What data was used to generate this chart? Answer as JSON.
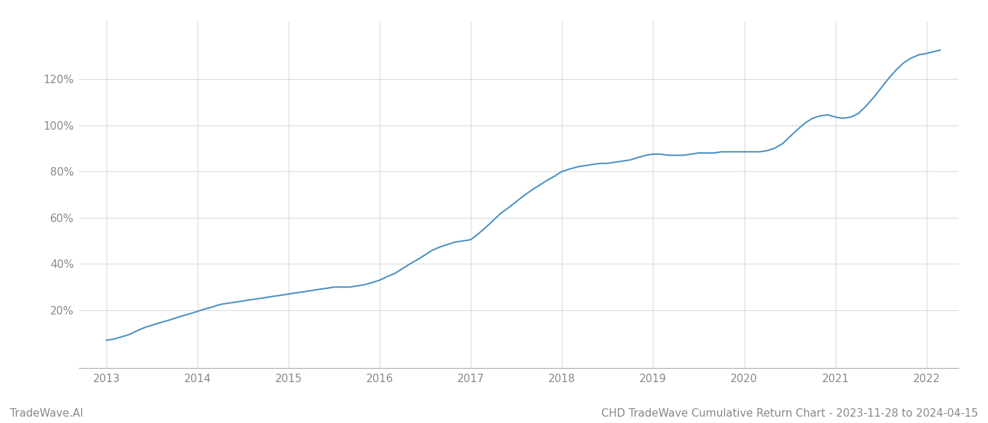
{
  "title": "CHD TradeWave Cumulative Return Chart - 2023-11-28 to 2024-04-15",
  "watermark": "TradeWave.AI",
  "line_color": "#4a90c4",
  "background_color": "#ffffff",
  "grid_color": "#d0d0d0",
  "x_years": [
    2013,
    2014,
    2015,
    2016,
    2017,
    2018,
    2019,
    2020,
    2021,
    2022
  ],
  "data_x": [
    2013.0,
    2013.08,
    2013.17,
    2013.25,
    2013.33,
    2013.42,
    2013.5,
    2013.58,
    2013.67,
    2013.75,
    2013.83,
    2013.92,
    2014.0,
    2014.08,
    2014.17,
    2014.25,
    2014.33,
    2014.42,
    2014.5,
    2014.58,
    2014.67,
    2014.75,
    2014.83,
    2014.92,
    2015.0,
    2015.08,
    2015.17,
    2015.25,
    2015.33,
    2015.42,
    2015.5,
    2015.58,
    2015.67,
    2015.75,
    2015.83,
    2015.92,
    2016.0,
    2016.08,
    2016.17,
    2016.25,
    2016.33,
    2016.42,
    2016.5,
    2016.58,
    2016.67,
    2016.75,
    2016.83,
    2016.92,
    2017.0,
    2017.08,
    2017.17,
    2017.25,
    2017.33,
    2017.42,
    2017.5,
    2017.58,
    2017.67,
    2017.75,
    2017.83,
    2017.92,
    2018.0,
    2018.08,
    2018.17,
    2018.25,
    2018.33,
    2018.42,
    2018.5,
    2018.58,
    2018.67,
    2018.75,
    2018.83,
    2018.92,
    2019.0,
    2019.08,
    2019.17,
    2019.25,
    2019.33,
    2019.42,
    2019.5,
    2019.58,
    2019.67,
    2019.75,
    2019.83,
    2019.92,
    2020.0,
    2020.08,
    2020.17,
    2020.25,
    2020.33,
    2020.42,
    2020.5,
    2020.58,
    2020.67,
    2020.75,
    2020.83,
    2020.92,
    2021.0,
    2021.08,
    2021.17,
    2021.25,
    2021.33,
    2021.42,
    2021.5,
    2021.58,
    2021.67,
    2021.75,
    2021.83,
    2021.92,
    2022.0,
    2022.05,
    2022.1,
    2022.15
  ],
  "data_y": [
    7.0,
    7.5,
    8.5,
    9.5,
    11.0,
    12.5,
    13.5,
    14.5,
    15.5,
    16.5,
    17.5,
    18.5,
    19.5,
    20.5,
    21.5,
    22.5,
    23.0,
    23.5,
    24.0,
    24.5,
    25.0,
    25.5,
    26.0,
    26.5,
    27.0,
    27.5,
    28.0,
    28.5,
    29.0,
    29.5,
    30.0,
    30.0,
    30.0,
    30.5,
    31.0,
    32.0,
    33.0,
    34.5,
    36.0,
    38.0,
    40.0,
    42.0,
    44.0,
    46.0,
    47.5,
    48.5,
    49.5,
    50.0,
    50.5,
    53.0,
    56.0,
    59.0,
    62.0,
    64.5,
    67.0,
    69.5,
    72.0,
    74.0,
    76.0,
    78.0,
    80.0,
    81.0,
    82.0,
    82.5,
    83.0,
    83.5,
    83.5,
    84.0,
    84.5,
    85.0,
    86.0,
    87.0,
    87.5,
    87.5,
    87.0,
    87.0,
    87.0,
    87.5,
    88.0,
    88.0,
    88.0,
    88.5,
    88.5,
    88.5,
    88.5,
    88.5,
    88.5,
    89.0,
    90.0,
    92.0,
    95.0,
    98.0,
    101.0,
    103.0,
    104.0,
    104.5,
    103.5,
    103.0,
    103.5,
    105.0,
    108.0,
    112.0,
    116.0,
    120.0,
    124.0,
    127.0,
    129.0,
    130.5,
    131.0,
    131.5,
    132.0,
    132.5
  ],
  "ylim": [
    -5,
    145
  ],
  "yticks": [
    20,
    40,
    60,
    80,
    100,
    120
  ],
  "ytick_labels": [
    "20%",
    "40%",
    "60%",
    "80%",
    "100%",
    "120%"
  ],
  "xlim": [
    2012.7,
    2022.35
  ],
  "line_width": 1.5,
  "title_fontsize": 11,
  "tick_fontsize": 11,
  "watermark_fontsize": 11
}
